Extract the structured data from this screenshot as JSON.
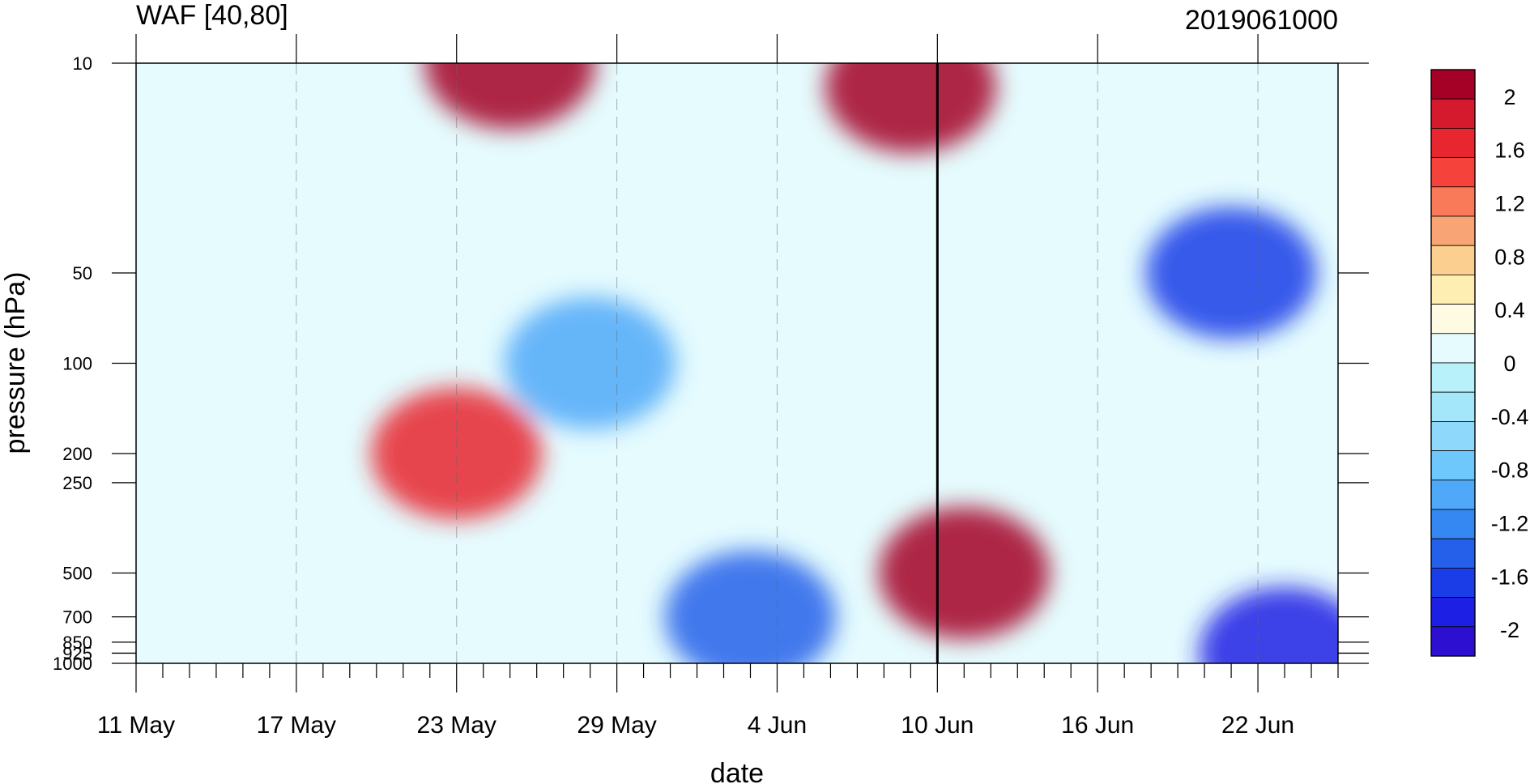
{
  "chart_data": {
    "type": "heatmap",
    "title": "WAF [40,80]",
    "right_title": "2019061000",
    "xlabel": "date",
    "ylabel": "pressure (hPa)",
    "y_scale": "log",
    "y_reversed": true,
    "y_ticks": [
      10,
      50,
      100,
      200,
      250,
      500,
      700,
      850,
      925,
      1000
    ],
    "y_tick_labels": [
      "10",
      "50",
      "100",
      "200",
      "250",
      "500",
      "700",
      "850",
      "925",
      "1000"
    ],
    "ylim": [
      1000,
      10
    ],
    "x_range": [
      "2019-05-11",
      "2019-06-25"
    ],
    "x_ticks": [
      "2019-05-11",
      "2019-05-17",
      "2019-05-23",
      "2019-05-29",
      "2019-06-04",
      "2019-06-10",
      "2019-06-16",
      "2019-06-22"
    ],
    "x_tick_labels": [
      "11 May",
      "17 May",
      "23 May",
      "29 May",
      "4 Jun",
      "10 Jun",
      "16 Jun",
      "22 Jun"
    ],
    "vertical_marker": "2019-06-10",
    "grid": "dashed vertical gridlines at labeled dates",
    "colorbar": {
      "levels": [
        -2.2,
        -2,
        -1.8,
        -1.6,
        -1.4,
        -1.2,
        -1,
        -0.8,
        -0.6,
        -0.4,
        -0.2,
        0,
        0.2,
        0.4,
        0.6,
        0.8,
        1,
        1.2,
        1.4,
        1.6,
        1.8,
        2,
        2.2
      ],
      "labels": [
        "2",
        "1.6",
        "1.2",
        "0.8",
        "0.4",
        "0",
        "-0.4",
        "-0.8",
        "-1.2",
        "-1.6",
        "-2"
      ],
      "label_values": [
        2,
        1.6,
        1.2,
        0.8,
        0.4,
        0,
        -0.4,
        -0.8,
        -1.2,
        -1.6,
        -2
      ],
      "colors": [
        "#a50026",
        "#d51a2e",
        "#e8262f",
        "#f5423a",
        "#f87a59",
        "#f8a474",
        "#fbcf8f",
        "#feeeb2",
        "#fffbe3",
        "#e5fbfe",
        "#b9f1fa",
        "#a4e7fb",
        "#8ed9fb",
        "#6ec8fb",
        "#4fa9f8",
        "#3587f2",
        "#2560ea",
        "#1a3de8",
        "#1d20e4",
        "#2d0fd2"
      ],
      "colors_order": "top_to_bottom"
    },
    "key_points": [
      {
        "date": "2019-05-25",
        "p": 10,
        "value": 2.2
      },
      {
        "date": "2019-06-09",
        "p": 12,
        "value": 2.2
      },
      {
        "date": "2019-06-11",
        "p": 500,
        "value": 1.8
      },
      {
        "date": "2019-06-21",
        "p": 50,
        "value": -1.8
      },
      {
        "date": "2019-06-03",
        "p": 700,
        "value": -1.6
      },
      {
        "date": "2019-06-23",
        "p": 925,
        "value": -2.0
      },
      {
        "date": "2019-05-28",
        "p": 100,
        "value": -1.2
      },
      {
        "date": "2019-05-23",
        "p": 200,
        "value": 1.2
      }
    ]
  }
}
